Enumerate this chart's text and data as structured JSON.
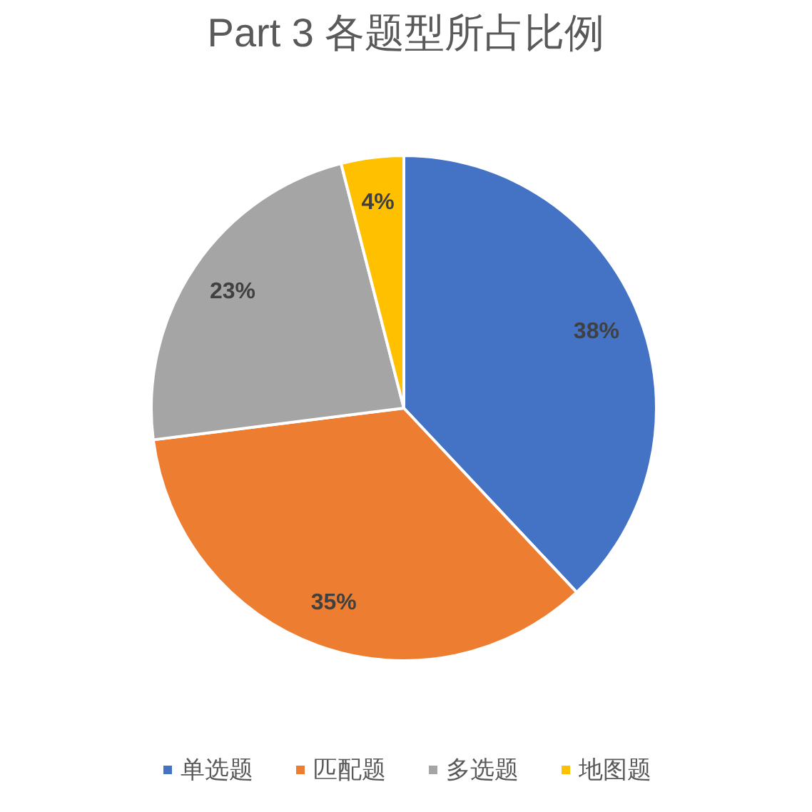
{
  "chart_data": {
    "type": "pie",
    "title": "Part 3 各题型所占比例",
    "categories": [
      "单选题",
      "匹配题",
      "多选题",
      "地图题"
    ],
    "values": [
      38,
      35,
      23,
      4
    ],
    "colors": [
      "#4472c4",
      "#ed7d31",
      "#a5a5a5",
      "#ffc000"
    ],
    "value_labels": [
      "38%",
      "35%",
      "23%",
      "4%"
    ],
    "legend": "bottom"
  }
}
